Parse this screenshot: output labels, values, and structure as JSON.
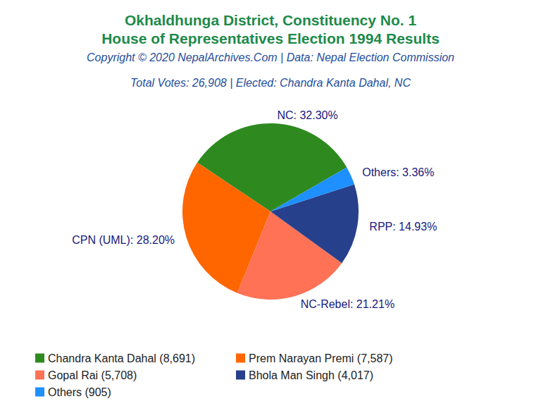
{
  "chart_data": {
    "type": "pie",
    "title": "Okhaldhunga District, Constituency No. 1\nHouse of Representatives Election 1994 Results",
    "subtitle": [
      "Copyright © 2020 NepalArchives.Com | Data: Nepal Election Commission",
      "Total Votes: 26,908 | Elected: Chandra Kanta Dahal, NC"
    ],
    "categories": [
      "NC",
      "CPN (UML)",
      "NC-Rebel",
      "RPP",
      "Others"
    ],
    "values": [
      32.3,
      28.2,
      21.21,
      14.93,
      3.36
    ],
    "value_labels": [
      "NC: 32.30%",
      "CPN (UML): 28.20%",
      "NC-Rebel: 21.21%",
      "RPP: 14.93%",
      "Others: 3.36%"
    ],
    "legend_labels": [
      "Chandra Kanta Dahal (8,691)",
      "Prem Narayan Premi (7,587)",
      "Gopal Rai (5,708)",
      "Bhola Man Singh (4,017)",
      "Others (905)"
    ],
    "colors": [
      "#2e8a1f",
      "#ff6600",
      "#ff7256",
      "#27408b",
      "#1e90ff"
    ],
    "data_labels": true,
    "legend": "bottom"
  }
}
